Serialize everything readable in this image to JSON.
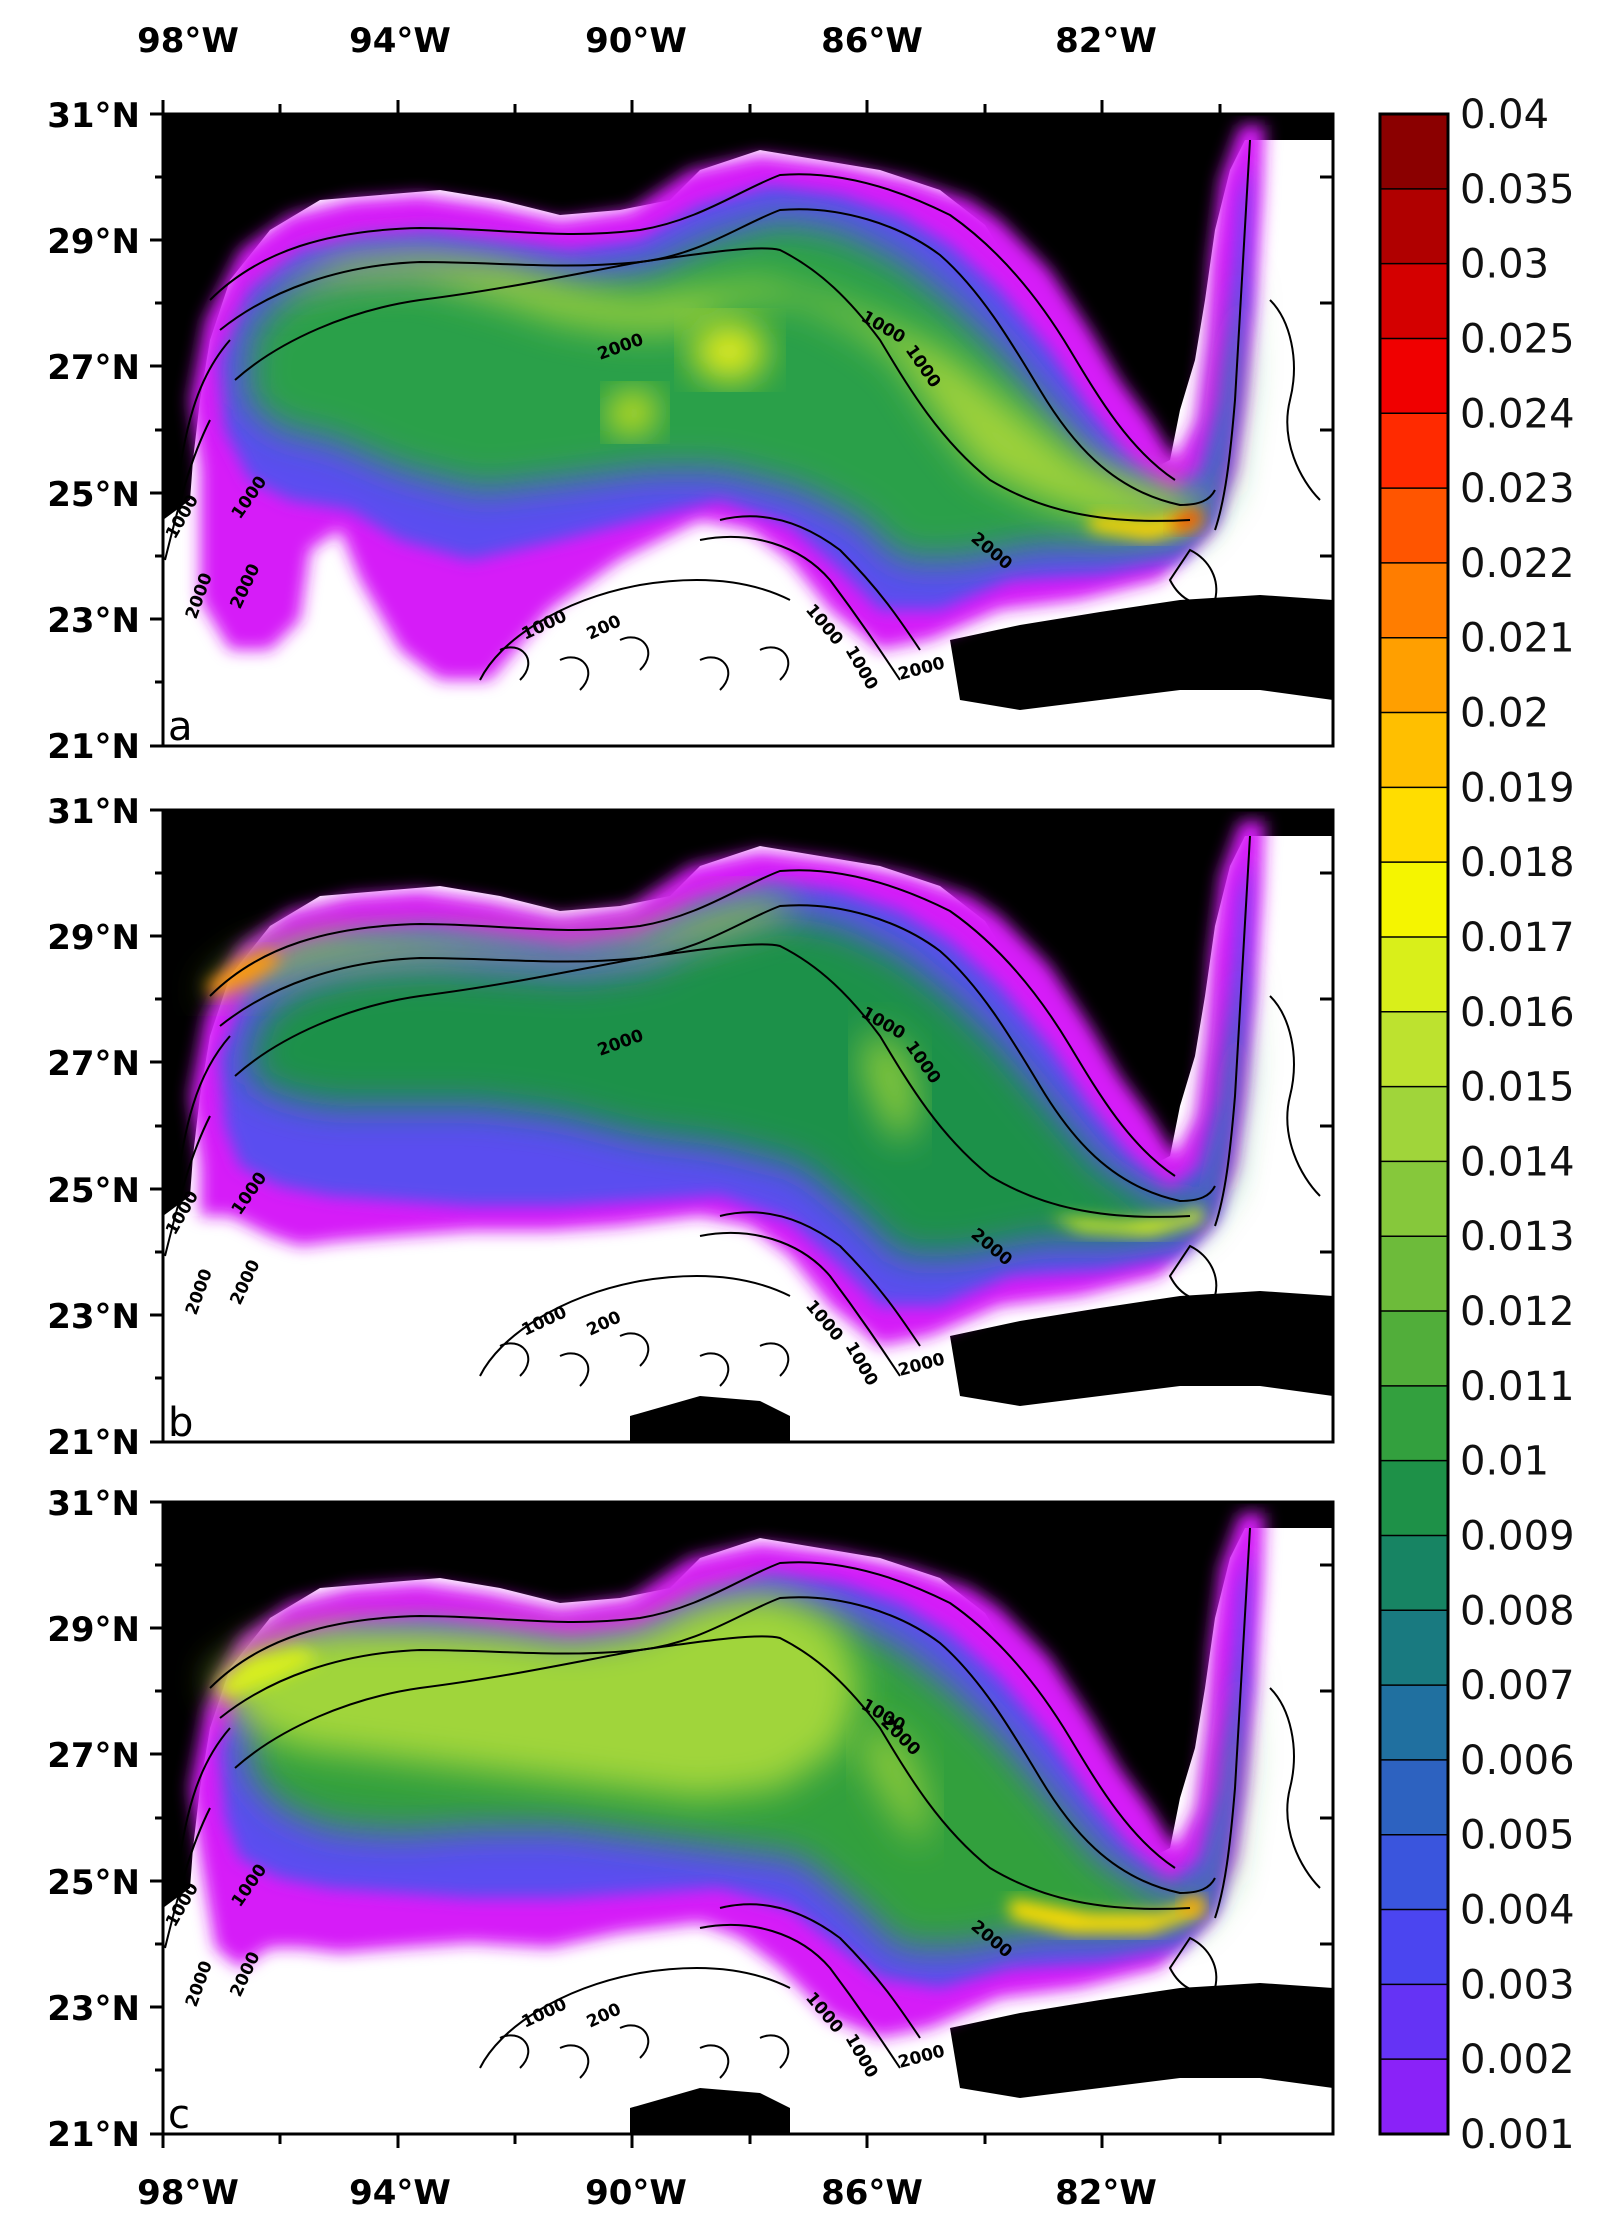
{
  "lon_labels": [
    "98°W",
    "94°W",
    "90°W",
    "86°W",
    "82°W"
  ],
  "lat_labels": [
    "31°N",
    "29°N",
    "27°N",
    "25°N",
    "23°N",
    "21°N"
  ],
  "panels": [
    {
      "label": "a",
      "contour_labels": [
        "1000",
        "2000",
        "1000",
        "2000",
        "1000",
        "2000",
        "1000",
        "2000",
        "200",
        "1000",
        "1000",
        "200",
        "2000",
        "1000",
        "200"
      ]
    },
    {
      "label": "b",
      "contour_labels": [
        "1000",
        "2000",
        "1000",
        "2000",
        "1000",
        "2000",
        "1000",
        "2000",
        "200",
        "1000",
        "1000",
        "200",
        "2000",
        "1000",
        "200"
      ]
    },
    {
      "label": "c",
      "contour_labels": [
        "1000",
        "2000",
        "1000",
        "2000",
        "1000",
        "2000",
        "1000",
        "2000",
        "200",
        "1000",
        "1000",
        "200",
        "2000",
        "1000",
        "200"
      ]
    }
  ],
  "colorbar": {
    "labels": [
      "0.04",
      "0.035",
      "0.03",
      "0.025",
      "0.024",
      "0.023",
      "0.022",
      "0.021",
      "0.02",
      "0.019",
      "0.018",
      "0.017",
      "0.016",
      "0.015",
      "0.014",
      "0.013",
      "0.012",
      "0.011",
      "0.01",
      "0.009",
      "0.008",
      "0.007",
      "0.006",
      "0.005",
      "0.004",
      "0.003",
      "0.002",
      "0.001"
    ],
    "colors": [
      "#8b0000",
      "#b00000",
      "#d40000",
      "#f00000",
      "#ff2a00",
      "#ff5500",
      "#ff7d00",
      "#ff9f00",
      "#ffbf00",
      "#ffdd00",
      "#f5f500",
      "#d9ef1a",
      "#bde22f",
      "#a0d53a",
      "#86c83b",
      "#6dbb3a",
      "#51ae3a",
      "#33a03e",
      "#1e9148",
      "#178463",
      "#197a80",
      "#2070a0",
      "#2d62c0",
      "#3a55dd",
      "#4b45f0",
      "#6533f5",
      "#8a22f8",
      "#c41ffc",
      "#e816ff"
    ]
  },
  "colors": {
    "land": "#000000",
    "ocean_bg": "#ffffff",
    "contour": "#000000"
  }
}
